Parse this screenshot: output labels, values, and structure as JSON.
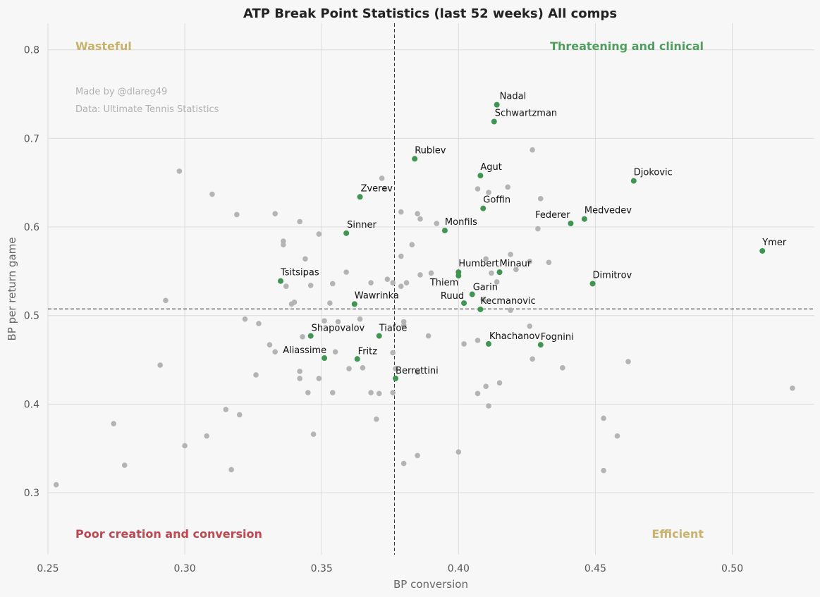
{
  "chart_data": {
    "type": "scatter",
    "title": "ATP Break Point Statistics (last 52 weeks) All comps",
    "xlabel": "BP conversion",
    "ylabel": "BP per return game",
    "xlim": [
      0.25,
      0.53
    ],
    "ylim": [
      0.23,
      0.83
    ],
    "xticks": [
      "0.25",
      "0.30",
      "0.35",
      "0.40",
      "0.45",
      "0.50"
    ],
    "yticks": [
      "0.3",
      "0.4",
      "0.5",
      "0.6",
      "0.7",
      "0.8"
    ],
    "reference_lines": {
      "x": 0.3766,
      "y": 0.5075
    },
    "grid": true,
    "colors": {
      "background": "#f7f7f7",
      "highlight": "#3e9651",
      "other": "#b4b4b4",
      "wasteful": "#c9b26b",
      "threatening": "#4f9e5e",
      "poor": "#c0474f",
      "efficient": "#c9b26b"
    },
    "quadrant_labels": [
      {
        "name": "wasteful",
        "text": "Wasteful",
        "color": "#c9b26b"
      },
      {
        "name": "threatening",
        "text": "Threatening and clinical",
        "color": "#4f9e5e"
      },
      {
        "name": "poor",
        "text": "Poor creation and conversion",
        "color": "#c0474f"
      },
      {
        "name": "efficient",
        "text": "Efficient",
        "color": "#c9b26b"
      }
    ],
    "credits": [
      "Made by @dlareg49",
      "Data: Ultimate Tennis Statistics"
    ],
    "highlighted_players": [
      {
        "name": "Nadal",
        "x": 0.414,
        "y": 0.738
      },
      {
        "name": "Schwartzman",
        "x": 0.413,
        "y": 0.719
      },
      {
        "name": "Rublev",
        "x": 0.384,
        "y": 0.677
      },
      {
        "name": "Agut",
        "x": 0.408,
        "y": 0.658
      },
      {
        "name": "Djokovic",
        "x": 0.464,
        "y": 0.652
      },
      {
        "name": "Zverev",
        "x": 0.364,
        "y": 0.634
      },
      {
        "name": "Goffin",
        "x": 0.409,
        "y": 0.621
      },
      {
        "name": "Medvedev",
        "x": 0.446,
        "y": 0.609
      },
      {
        "name": "Federer",
        "x": 0.441,
        "y": 0.604
      },
      {
        "name": "Monfils",
        "x": 0.395,
        "y": 0.596
      },
      {
        "name": "Sinner",
        "x": 0.359,
        "y": 0.593
      },
      {
        "name": "Ymer",
        "x": 0.511,
        "y": 0.573
      },
      {
        "name": "Humbert",
        "x": 0.4,
        "y": 0.549
      },
      {
        "name": "Minaur",
        "x": 0.415,
        "y": 0.549
      },
      {
        "name": "Tsitsipas",
        "x": 0.335,
        "y": 0.539
      },
      {
        "name": "Dimitrov",
        "x": 0.449,
        "y": 0.536
      },
      {
        "name": "Thiem",
        "x": 0.4,
        "y": 0.545
      },
      {
        "name": "Garin",
        "x": 0.405,
        "y": 0.524
      },
      {
        "name": "Ruud",
        "x": 0.402,
        "y": 0.514
      },
      {
        "name": "Wawrinka",
        "x": 0.362,
        "y": 0.513
      },
      {
        "name": "Kecmanovic",
        "x": 0.408,
        "y": 0.507
      },
      {
        "name": "Shapovalov",
        "x": 0.346,
        "y": 0.477
      },
      {
        "name": "Tiafoe",
        "x": 0.371,
        "y": 0.477
      },
      {
        "name": "Khachanov",
        "x": 0.411,
        "y": 0.468
      },
      {
        "name": "Fognini",
        "x": 0.43,
        "y": 0.467
      },
      {
        "name": "Aliassime",
        "x": 0.351,
        "y": 0.452
      },
      {
        "name": "Fritz",
        "x": 0.363,
        "y": 0.451
      },
      {
        "name": "Berrettini",
        "x": 0.377,
        "y": 0.429
      }
    ],
    "other_players": [
      [
        0.298,
        0.663
      ],
      [
        0.31,
        0.637
      ],
      [
        0.319,
        0.614
      ],
      [
        0.333,
        0.615
      ],
      [
        0.342,
        0.606
      ],
      [
        0.349,
        0.592
      ],
      [
        0.336,
        0.584
      ],
      [
        0.336,
        0.58
      ],
      [
        0.344,
        0.564
      ],
      [
        0.372,
        0.655
      ],
      [
        0.373,
        0.643
      ],
      [
        0.379,
        0.617
      ],
      [
        0.385,
        0.615
      ],
      [
        0.386,
        0.609
      ],
      [
        0.392,
        0.604
      ],
      [
        0.383,
        0.58
      ],
      [
        0.379,
        0.567
      ],
      [
        0.359,
        0.549
      ],
      [
        0.374,
        0.541
      ],
      [
        0.368,
        0.537
      ],
      [
        0.381,
        0.537
      ],
      [
        0.386,
        0.546
      ],
      [
        0.39,
        0.548
      ],
      [
        0.376,
        0.537
      ],
      [
        0.379,
        0.533
      ],
      [
        0.354,
        0.536
      ],
      [
        0.346,
        0.534
      ],
      [
        0.337,
        0.533
      ],
      [
        0.34,
        0.515
      ],
      [
        0.339,
        0.513
      ],
      [
        0.353,
        0.514
      ],
      [
        0.293,
        0.517
      ],
      [
        0.427,
        0.687
      ],
      [
        0.407,
        0.643
      ],
      [
        0.411,
        0.639
      ],
      [
        0.418,
        0.645
      ],
      [
        0.43,
        0.632
      ],
      [
        0.429,
        0.598
      ],
      [
        0.41,
        0.564
      ],
      [
        0.419,
        0.569
      ],
      [
        0.426,
        0.561
      ],
      [
        0.433,
        0.56
      ],
      [
        0.421,
        0.552
      ],
      [
        0.412,
        0.548
      ],
      [
        0.414,
        0.538
      ],
      [
        0.4,
        0.546
      ],
      [
        0.409,
        0.518
      ],
      [
        0.419,
        0.506
      ],
      [
        0.322,
        0.496
      ],
      [
        0.327,
        0.491
      ],
      [
        0.351,
        0.494
      ],
      [
        0.356,
        0.493
      ],
      [
        0.364,
        0.496
      ],
      [
        0.38,
        0.493
      ],
      [
        0.38,
        0.489
      ],
      [
        0.343,
        0.476
      ],
      [
        0.389,
        0.477
      ],
      [
        0.407,
        0.472
      ],
      [
        0.402,
        0.468
      ],
      [
        0.426,
        0.488
      ],
      [
        0.331,
        0.467
      ],
      [
        0.333,
        0.459
      ],
      [
        0.355,
        0.459
      ],
      [
        0.376,
        0.458
      ],
      [
        0.291,
        0.444
      ],
      [
        0.326,
        0.433
      ],
      [
        0.342,
        0.437
      ],
      [
        0.342,
        0.429
      ],
      [
        0.349,
        0.429
      ],
      [
        0.36,
        0.44
      ],
      [
        0.365,
        0.441
      ],
      [
        0.377,
        0.44
      ],
      [
        0.385,
        0.436
      ],
      [
        0.41,
        0.42
      ],
      [
        0.415,
        0.424
      ],
      [
        0.407,
        0.412
      ],
      [
        0.411,
        0.398
      ],
      [
        0.427,
        0.451
      ],
      [
        0.438,
        0.441
      ],
      [
        0.462,
        0.448
      ],
      [
        0.345,
        0.413
      ],
      [
        0.354,
        0.413
      ],
      [
        0.368,
        0.413
      ],
      [
        0.371,
        0.412
      ],
      [
        0.376,
        0.413
      ],
      [
        0.315,
        0.394
      ],
      [
        0.32,
        0.388
      ],
      [
        0.274,
        0.378
      ],
      [
        0.37,
        0.383
      ],
      [
        0.347,
        0.366
      ],
      [
        0.308,
        0.364
      ],
      [
        0.3,
        0.353
      ],
      [
        0.278,
        0.331
      ],
      [
        0.317,
        0.326
      ],
      [
        0.38,
        0.333
      ],
      [
        0.385,
        0.342
      ],
      [
        0.4,
        0.346
      ],
      [
        0.253,
        0.309
      ],
      [
        0.453,
        0.384
      ],
      [
        0.458,
        0.364
      ],
      [
        0.453,
        0.325
      ],
      [
        0.522,
        0.418
      ]
    ]
  }
}
